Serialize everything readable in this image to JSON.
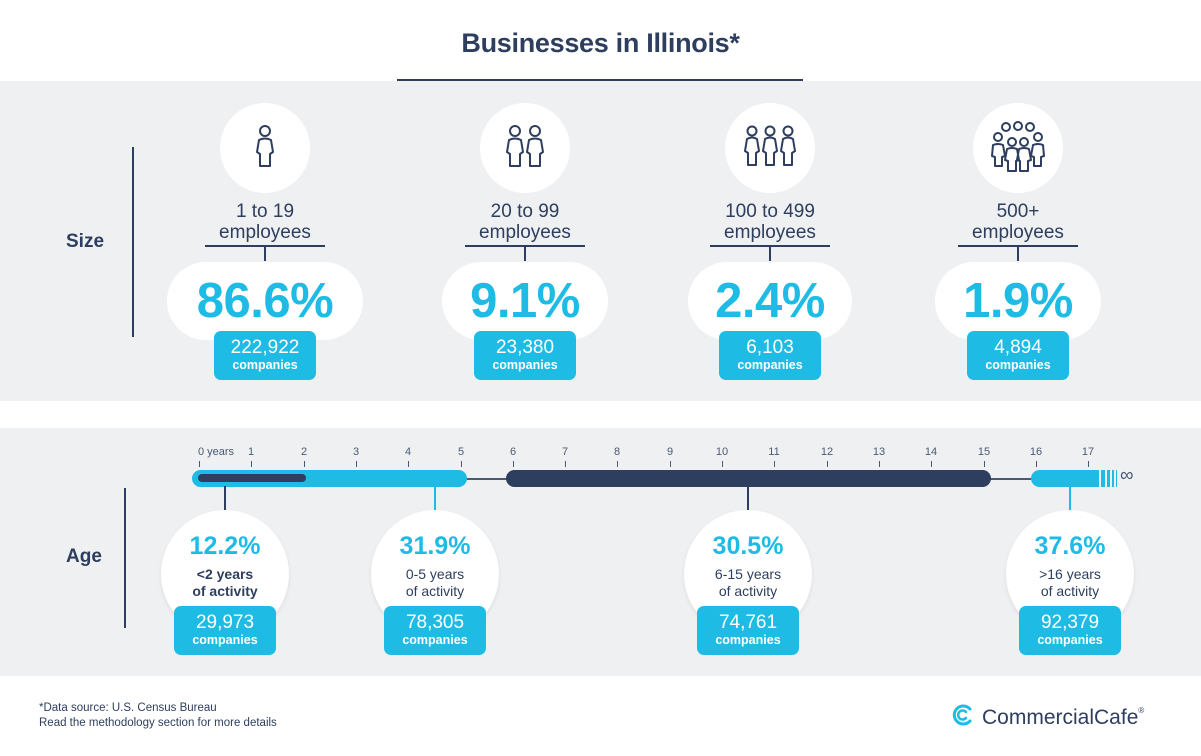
{
  "title": "Businesses in Illinois*",
  "size": {
    "label": "Size",
    "groups": [
      {
        "icon": "one-person-icon",
        "label_line1": "1 to 19",
        "label_line2": "employees",
        "percent": "86.6%",
        "count": "222,922",
        "unit": "companies"
      },
      {
        "icon": "two-people-icon",
        "label_line1": "20 to 99",
        "label_line2": "employees",
        "percent": "9.1%",
        "count": "23,380",
        "unit": "companies"
      },
      {
        "icon": "three-people-icon",
        "label_line1": "100 to 499",
        "label_line2": "employees",
        "percent": "2.4%",
        "count": "6,103",
        "unit": "companies"
      },
      {
        "icon": "group-people-icon",
        "label_line1": "500+",
        "label_line2": "employees",
        "percent": "1.9%",
        "count": "4,894",
        "unit": "companies"
      }
    ]
  },
  "age": {
    "label": "Age",
    "axis_ticks": [
      "0 years",
      "1",
      "2",
      "3",
      "4",
      "5",
      "6",
      "7",
      "8",
      "9",
      "10",
      "11",
      "12",
      "13",
      "14",
      "15",
      "16",
      "17"
    ],
    "infinity": "∞",
    "groups": [
      {
        "percent": "12.2%",
        "label_line1": "<2 years",
        "label_line2": "of activity",
        "count": "29,973",
        "unit": "companies",
        "range": [
          0,
          2
        ]
      },
      {
        "percent": "31.9%",
        "label_line1": "0-5 years",
        "label_line2": "of activity",
        "count": "78,305",
        "unit": "companies",
        "range": [
          0,
          5
        ]
      },
      {
        "percent": "30.5%",
        "label_line1": "6-15 years",
        "label_line2": "of activity",
        "count": "74,761",
        "unit": "companies",
        "range": [
          6,
          15
        ]
      },
      {
        "percent": "37.6%",
        "label_line1": ">16 years",
        "label_line2": "of activity",
        "count": "92,379",
        "unit": "companies",
        "range": [
          16,
          "∞"
        ]
      }
    ]
  },
  "footnote": {
    "line1": "*Data source: U.S. Census Bureau",
    "line2": "Read the methodology section for more details"
  },
  "brand": {
    "name": "CommercialCafe",
    "reg": "®",
    "icon": "commercialcafe-logo-icon"
  },
  "colors": {
    "accent": "#1ebbe5",
    "navy": "#2d3e5e",
    "panel": "#eff0f2"
  }
}
